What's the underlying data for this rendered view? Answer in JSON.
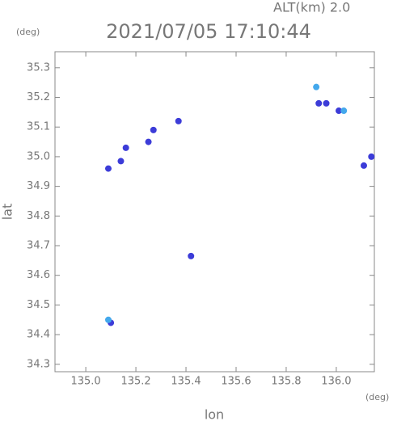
{
  "chart_data": {
    "type": "scatter",
    "title": "2021/07/05 17:10:44",
    "subtitle": "ALT(km) 2.0",
    "x_label": "lon",
    "y_label": "lat",
    "x_unit": "(deg)",
    "y_unit": "(deg)",
    "xlim": [
      134.877,
      136.152
    ],
    "ylim": [
      34.275,
      35.354
    ],
    "xticks": [
      {
        "value": 135.0,
        "label": "135.0"
      },
      {
        "value": 135.2,
        "label": "135.2"
      },
      {
        "value": 135.4,
        "label": "135.4"
      },
      {
        "value": 135.6,
        "label": "135.6"
      },
      {
        "value": 135.8,
        "label": "135.8"
      },
      {
        "value": 136.0,
        "label": "136.0"
      }
    ],
    "yticks": [
      34.3,
      34.4,
      34.5,
      34.6,
      34.7,
      34.8,
      34.9,
      {
        "value": 35.0,
        "label": "35.0"
      },
      35.1,
      35.2,
      35.3
    ],
    "grid": false,
    "series": [
      {
        "color": "#3c3cd8",
        "x": [
          135.09,
          135.14,
          135.16,
          135.25,
          135.27,
          135.37,
          135.93,
          135.96,
          136.01,
          136.14,
          136.11,
          135.42,
          135.1
        ],
        "values": [
          34.96,
          34.985,
          35.03,
          35.05,
          35.09,
          35.12,
          35.18,
          35.18,
          35.155,
          35.0,
          34.97,
          34.665,
          34.44
        ]
      },
      {
        "color": "#44a8ec",
        "x": [
          135.92,
          136.03,
          135.09
        ],
        "values": [
          35.235,
          35.155,
          34.45
        ]
      }
    ]
  }
}
